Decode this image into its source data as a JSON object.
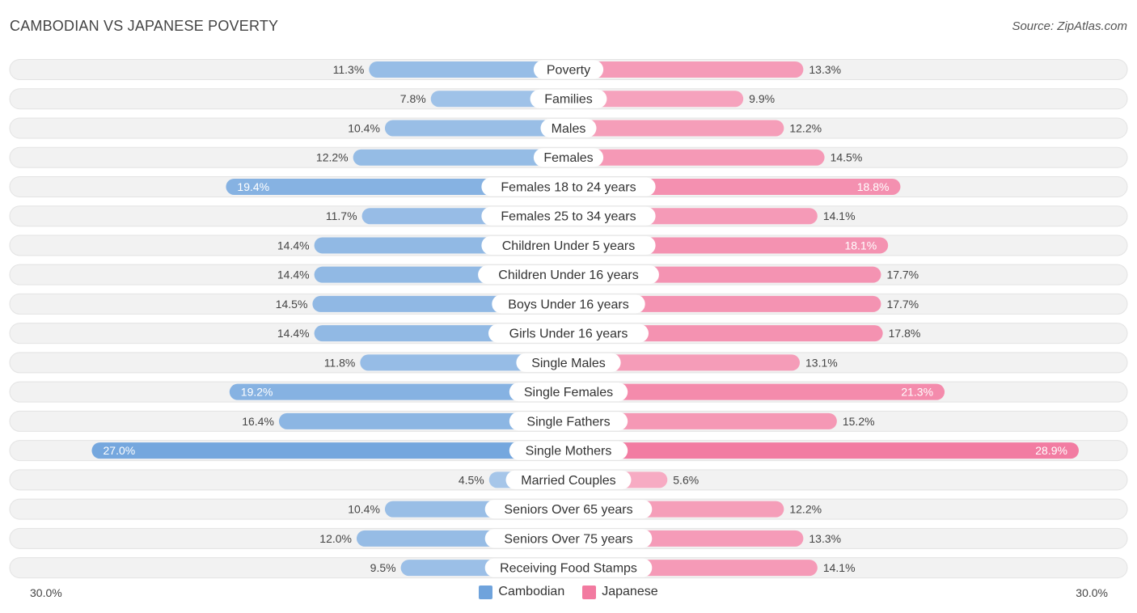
{
  "header": {
    "title": "CAMBODIAN VS JAPANESE POVERTY",
    "source": "Source: ZipAtlas.com"
  },
  "axis": {
    "left_label": "30.0%",
    "right_label": "30.0%"
  },
  "legend": {
    "cambodian": "Cambodian",
    "japanese": "Japanese"
  },
  "colors": {
    "cambodian": "#6fa3dc",
    "japanese": "#f27aa0",
    "row_bg": "#f1f1f1"
  },
  "chart_data": {
    "type": "bar",
    "orientation": "horizontal-diverging",
    "title": "CAMBODIAN VS JAPANESE POVERTY",
    "xlim": [
      0,
      30
    ],
    "x_unit": "%",
    "categories": [
      "Poverty",
      "Families",
      "Males",
      "Females",
      "Females 18 to 24 years",
      "Females 25 to 34 years",
      "Children Under 5 years",
      "Children Under 16 years",
      "Boys Under 16 years",
      "Girls Under 16 years",
      "Single Males",
      "Single Females",
      "Single Fathers",
      "Single Mothers",
      "Married Couples",
      "Seniors Over 65 years",
      "Seniors Over 75 years",
      "Receiving Food Stamps"
    ],
    "series": [
      {
        "name": "Cambodian",
        "values": [
          11.3,
          7.8,
          10.4,
          12.2,
          19.4,
          11.7,
          14.4,
          14.4,
          14.5,
          14.4,
          11.8,
          19.2,
          16.4,
          27.0,
          4.5,
          10.4,
          12.0,
          9.5
        ],
        "labels": [
          "11.3%",
          "7.8%",
          "10.4%",
          "12.2%",
          "19.4%",
          "11.7%",
          "14.4%",
          "14.4%",
          "14.5%",
          "14.4%",
          "11.8%",
          "19.2%",
          "16.4%",
          "27.0%",
          "4.5%",
          "10.4%",
          "12.0%",
          "9.5%"
        ]
      },
      {
        "name": "Japanese",
        "values": [
          13.3,
          9.9,
          12.2,
          14.5,
          18.8,
          14.1,
          18.1,
          17.7,
          17.7,
          17.8,
          13.1,
          21.3,
          15.2,
          28.9,
          5.6,
          12.2,
          13.3,
          14.1
        ],
        "labels": [
          "13.3%",
          "9.9%",
          "12.2%",
          "14.5%",
          "18.8%",
          "14.1%",
          "18.1%",
          "17.7%",
          "17.7%",
          "17.8%",
          "13.1%",
          "21.3%",
          "15.2%",
          "28.9%",
          "5.6%",
          "12.2%",
          "13.3%",
          "14.1%"
        ]
      }
    ],
    "legend_position": "bottom-center"
  }
}
